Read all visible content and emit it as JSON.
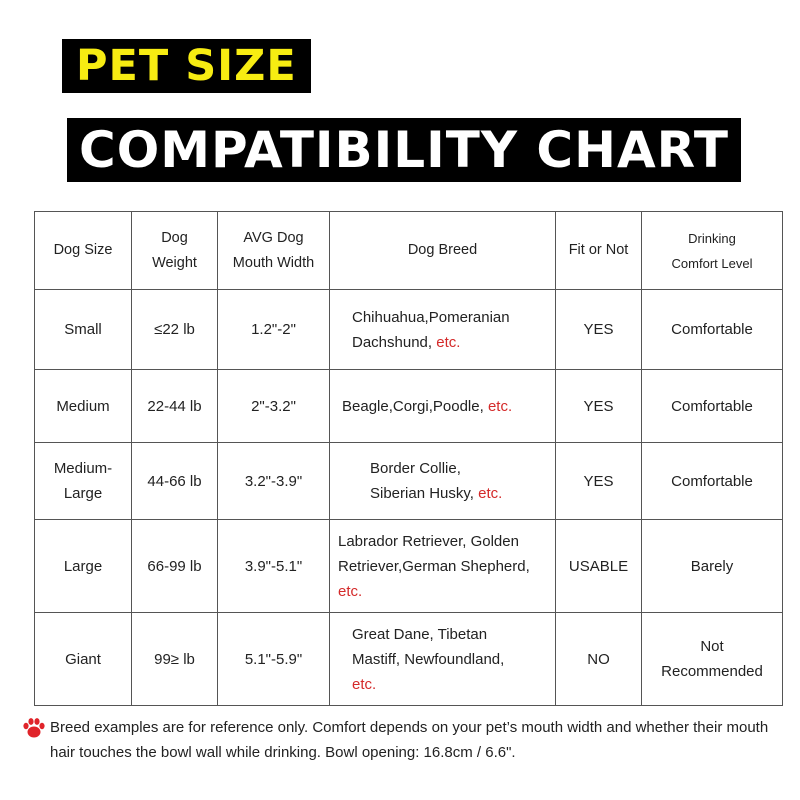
{
  "title": {
    "line1": "PET SIZE",
    "line2": "COMPATIBILITY CHART"
  },
  "table": {
    "headers": [
      [
        "Dog Size"
      ],
      [
        "Dog",
        "Weight"
      ],
      [
        "AVG Dog",
        "Mouth Width"
      ],
      [
        "Dog Breed"
      ],
      [
        "Fit or Not"
      ],
      [
        "Drinking",
        "Comfort Level"
      ]
    ],
    "etc_label": "etc.",
    "rows": [
      {
        "size": [
          "Small"
        ],
        "weight": "≤22 lb",
        "mouth": "1.2\"-2\"",
        "breed": [
          "Chihuahua,Pomeranian",
          "Dachshund, "
        ],
        "fit": "YES",
        "comfort": [
          "Comfortable"
        ]
      },
      {
        "size": [
          "Medium"
        ],
        "weight": "22-44 lb",
        "mouth": "2\"-3.2\"",
        "breed": [
          "Beagle,Corgi,Poodle, "
        ],
        "fit": "YES",
        "comfort": [
          "Comfortable"
        ]
      },
      {
        "size": [
          "Medium-",
          "Large"
        ],
        "weight": "44-66 lb",
        "mouth": "3.2\"-3.9\"",
        "breed": [
          "Border Collie,",
          "Siberian Husky, "
        ],
        "fit": "YES",
        "comfort": [
          "Comfortable"
        ]
      },
      {
        "size": [
          "Large"
        ],
        "weight": "66-99 lb",
        "mouth": "3.9\"-5.1\"",
        "breed": [
          "Labrador Retriever, Golden",
          "Retriever,German Shepherd,",
          ""
        ],
        "fit": "USABLE",
        "comfort": [
          "Barely"
        ]
      },
      {
        "size": [
          "Giant"
        ],
        "weight": "99≥ lb",
        "mouth": "5.1\"-5.9\"",
        "breed": [
          "Great Dane, Tibetan",
          "Mastiff, Newfoundland,",
          ""
        ],
        "fit": "NO",
        "comfort": [
          "Not",
          "Recommended"
        ]
      }
    ]
  },
  "note": {
    "icon": "paw-print-icon",
    "text": "Breed examples are for reference only. Comfort depends on your pet’s mouth width and whether their mouth hair touches the bowl wall while drinking. Bowl opening: 16.8cm / 6.6\"."
  },
  "colors": {
    "title_bg": "#000000",
    "title_line1": "#f7ec12",
    "title_line2": "#ffffff",
    "yes": "#1a9a2e",
    "usable": "#e0661b",
    "no": "#d61a1a",
    "etc": "#d42a2a",
    "paw": "#e0242a"
  }
}
